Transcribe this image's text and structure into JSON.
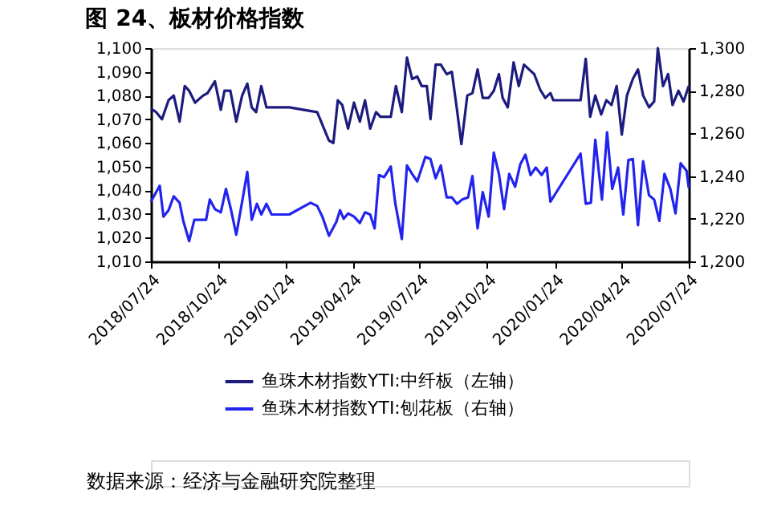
{
  "chart_data": {
    "type": "line",
    "title": "图 24、板材价格指数",
    "annotations": [
      "数据来源：经济与金融研究院整理"
    ],
    "xlim": [
      "2018-07-24",
      "2020-07-24"
    ],
    "xticks": [
      {
        "value": "2018-07-24",
        "label": "2018/07/24"
      },
      {
        "value": "2018-10-24",
        "label": "2018/10/24"
      },
      {
        "value": "2019-01-24",
        "label": "2019/01/24"
      },
      {
        "value": "2019-04-24",
        "label": "2019/04/24"
      },
      {
        "value": "2019-07-24",
        "label": "2019/07/24"
      },
      {
        "value": "2019-10-24",
        "label": "2019/10/24"
      },
      {
        "value": "2020-01-24",
        "label": "2020/01/24"
      },
      {
        "value": "2020-04-24",
        "label": "2020/04/24"
      },
      {
        "value": "2020-07-24",
        "label": "2020/07/24"
      }
    ],
    "ylim": [
      1010,
      1100
    ],
    "yticks": [
      {
        "value": 1010,
        "label": "1,010"
      },
      {
        "value": 1020,
        "label": "1,020"
      },
      {
        "value": 1030,
        "label": "1,030"
      },
      {
        "value": 1040,
        "label": "1,040"
      },
      {
        "value": 1050,
        "label": "1,050"
      },
      {
        "value": 1060,
        "label": "1,060"
      },
      {
        "value": 1070,
        "label": "1,070"
      },
      {
        "value": 1080,
        "label": "1,080"
      },
      {
        "value": 1090,
        "label": "1,090"
      },
      {
        "value": 1100,
        "label": "1,100"
      }
    ],
    "y2lim": [
      1200,
      1300
    ],
    "y2ticks": [
      {
        "value": 1200,
        "label": "1,200"
      },
      {
        "value": 1220,
        "label": "1,220"
      },
      {
        "value": 1240,
        "label": "1,240"
      },
      {
        "value": 1260,
        "label": "1,260"
      },
      {
        "value": 1280,
        "label": "1,280"
      },
      {
        "value": 1300,
        "label": "1,300"
      }
    ],
    "grid": false,
    "legend": "bottom",
    "marker": "none",
    "line_style": "solid",
    "series": [
      {
        "name": "鱼珠木材指数YTI:中纤板（左轴）",
        "color": "#1c1c7e",
        "axis": "y",
        "x": [
          "2018-07-24",
          "2018-07-31",
          "2018-08-08",
          "2018-08-17",
          "2018-08-24",
          "2018-09-01",
          "2018-09-08",
          "2018-09-14",
          "2018-09-22",
          "2018-10-03",
          "2018-10-09",
          "2018-10-19",
          "2018-10-27",
          "2018-11-01",
          "2018-11-09",
          "2018-11-17",
          "2018-11-25",
          "2018-12-02",
          "2018-12-08",
          "2018-12-14",
          "2018-12-21",
          "2018-12-28",
          "2019-01-28",
          "2019-03-07",
          "2019-03-23",
          "2019-03-29",
          "2019-04-04",
          "2019-04-10",
          "2019-04-18",
          "2019-04-26",
          "2019-05-04",
          "2019-05-11",
          "2019-05-18",
          "2019-05-26",
          "2019-06-01",
          "2019-06-15",
          "2019-06-22",
          "2019-06-30",
          "2019-07-07",
          "2019-07-14",
          "2019-07-21",
          "2019-07-27",
          "2019-08-03",
          "2019-08-08",
          "2019-08-15",
          "2019-08-22",
          "2019-08-30",
          "2019-09-06",
          "2019-09-13",
          "2019-09-19",
          "2019-09-27",
          "2019-10-04",
          "2019-10-11",
          "2019-10-18",
          "2019-10-26",
          "2019-11-02",
          "2019-11-09",
          "2019-11-14",
          "2019-11-21",
          "2019-11-29",
          "2019-12-06",
          "2019-12-13",
          "2019-12-20",
          "2019-12-27",
          "2020-01-04",
          "2020-01-11",
          "2020-01-18",
          "2020-01-22",
          "2020-02-28",
          "2020-03-06",
          "2020-03-12",
          "2020-03-19",
          "2020-03-27",
          "2020-04-03",
          "2020-04-10",
          "2020-04-17",
          "2020-04-24",
          "2020-05-01",
          "2020-05-09",
          "2020-05-16",
          "2020-05-23",
          "2020-05-31",
          "2020-06-07",
          "2020-06-12",
          "2020-06-19",
          "2020-06-26",
          "2020-07-02",
          "2020-07-10",
          "2020-07-17",
          "2020-07-24"
        ],
        "values": [
          1074.5,
          1073,
          1070,
          1078,
          1080,
          1069,
          1084,
          1082,
          1077,
          1080,
          1081,
          1086,
          1074,
          1082,
          1082,
          1069,
          1080,
          1085,
          1075,
          1073,
          1084,
          1075,
          1075,
          1073,
          1061,
          1060,
          1078,
          1076,
          1066,
          1077,
          1069,
          1078,
          1066,
          1073,
          1071,
          1071,
          1084,
          1073,
          1096,
          1087,
          1088,
          1084,
          1084,
          1070,
          1093,
          1093,
          1089,
          1090,
          1074,
          1059.5,
          1080,
          1081,
          1091,
          1079,
          1079,
          1082,
          1089,
          1079,
          1075,
          1094,
          1084,
          1093,
          1091,
          1089,
          1082.5,
          1079,
          1081,
          1078,
          1078,
          1095.5,
          1071,
          1080,
          1072,
          1078,
          1076,
          1084,
          1063.5,
          1080,
          1087,
          1091,
          1080,
          1075,
          1077.5,
          1100,
          1084,
          1089,
          1076,
          1082,
          1077.5,
          1084
        ]
      },
      {
        "name": "鱼珠木材指数YTI:刨花板（右轴）",
        "color": "#2323ee",
        "axis": "y2",
        "x": [
          "2018-07-24",
          "2018-08-05",
          "2018-08-10",
          "2018-08-17",
          "2018-08-24",
          "2018-09-01",
          "2018-09-06",
          "2018-09-14",
          "2018-09-21",
          "2018-09-30",
          "2018-10-07",
          "2018-10-12",
          "2018-10-19",
          "2018-10-27",
          "2018-11-03",
          "2018-11-10",
          "2018-11-17",
          "2018-11-25",
          "2018-12-02",
          "2018-12-08",
          "2018-12-15",
          "2018-12-21",
          "2018-12-28",
          "2019-01-04",
          "2019-01-28",
          "2019-02-26",
          "2019-03-07",
          "2019-03-14",
          "2019-03-23",
          "2019-04-02",
          "2019-04-07",
          "2019-04-12",
          "2019-04-18",
          "2019-04-26",
          "2019-05-04",
          "2019-05-11",
          "2019-05-18",
          "2019-05-24",
          "2019-05-30",
          "2019-06-06",
          "2019-06-15",
          "2019-06-21",
          "2019-06-30",
          "2019-07-07",
          "2019-07-14",
          "2019-07-21",
          "2019-08-01",
          "2019-08-08",
          "2019-08-15",
          "2019-08-22",
          "2019-08-30",
          "2019-09-06",
          "2019-09-13",
          "2019-09-20",
          "2019-09-28",
          "2019-10-04",
          "2019-10-11",
          "2019-10-18",
          "2019-10-26",
          "2019-11-02",
          "2019-11-09",
          "2019-11-16",
          "2019-11-23",
          "2019-12-01",
          "2019-12-08",
          "2019-12-15",
          "2019-12-22",
          "2019-12-29",
          "2020-01-06",
          "2020-01-13",
          "2020-01-18",
          "2020-02-28",
          "2020-03-06",
          "2020-03-13",
          "2020-03-19",
          "2020-03-28",
          "2020-04-04",
          "2020-04-11",
          "2020-04-19",
          "2020-04-26",
          "2020-05-03",
          "2020-05-09",
          "2020-05-16",
          "2020-05-23",
          "2020-05-31",
          "2020-06-07",
          "2020-06-14",
          "2020-06-21",
          "2020-06-29",
          "2020-07-06",
          "2020-07-13",
          "2020-07-21",
          "2020-07-24"
        ],
        "values": [
          1228,
          1235.5,
          1221,
          1224,
          1230.5,
          1227.5,
          1219,
          1209.5,
          1219.5,
          1219.5,
          1219.5,
          1229,
          1224.5,
          1223,
          1234,
          1224,
          1212.5,
          1228,
          1242,
          1219.5,
          1227,
          1222,
          1227,
          1222,
          1222,
          1227.5,
          1226,
          1221,
          1212,
          1218.5,
          1224,
          1220,
          1222.5,
          1221,
          1218,
          1223,
          1222,
          1215.5,
          1240.5,
          1239.5,
          1244.5,
          1227.5,
          1210.5,
          1245,
          1241,
          1237.5,
          1249,
          1248,
          1239,
          1245,
          1230,
          1230,
          1227,
          1229,
          1230,
          1240,
          1215.5,
          1232.5,
          1221,
          1251,
          1241,
          1224.5,
          1241,
          1235,
          1245.5,
          1250,
          1240.5,
          1244,
          1240.5,
          1244,
          1228,
          1250.5,
          1227,
          1227.5,
          1257,
          1229,
          1260.5,
          1234,
          1244,
          1222,
          1247.5,
          1248,
          1217,
          1247,
          1231,
          1229,
          1219,
          1241,
          1234,
          1222.5,
          1246,
          1242.5,
          1234.5
        ]
      }
    ]
  }
}
